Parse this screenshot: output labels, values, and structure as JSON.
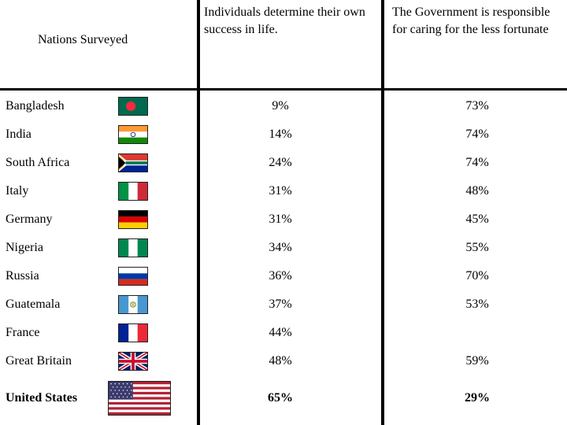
{
  "headers": {
    "nations": "Nations Surveyed",
    "col1": "Individuals determine their own success in life.",
    "col2": "The Government is responsible for caring for the less fortunate"
  },
  "rows": [
    {
      "country": "Bangladesh",
      "flag": "bangladesh-flag",
      "individuals": "9%",
      "government": "73%"
    },
    {
      "country": "India",
      "flag": "india-flag",
      "individuals": "14%",
      "government": "74%"
    },
    {
      "country": "South Africa",
      "flag": "south-africa-flag",
      "individuals": "24%",
      "government": "74%"
    },
    {
      "country": "Italy",
      "flag": "italy-flag",
      "individuals": "31%",
      "government": "48%"
    },
    {
      "country": "Germany",
      "flag": "germany-flag",
      "individuals": "31%",
      "government": "45%"
    },
    {
      "country": "Nigeria",
      "flag": "nigeria-flag",
      "individuals": "34%",
      "government": "55%"
    },
    {
      "country": "Russia",
      "flag": "russia-flag",
      "individuals": "36%",
      "government": "70%"
    },
    {
      "country": "Guatemala",
      "flag": "guatemala-flag",
      "individuals": "37%",
      "government": "53%"
    },
    {
      "country": "France",
      "flag": "france-flag",
      "individuals": "44%",
      "government": ""
    },
    {
      "country": "Great Britain",
      "flag": "uk-flag",
      "individuals": "48%",
      "government": "59%"
    },
    {
      "country": "United States",
      "flag": "usa-flag",
      "individuals": "65%",
      "government": "29%"
    }
  ]
}
